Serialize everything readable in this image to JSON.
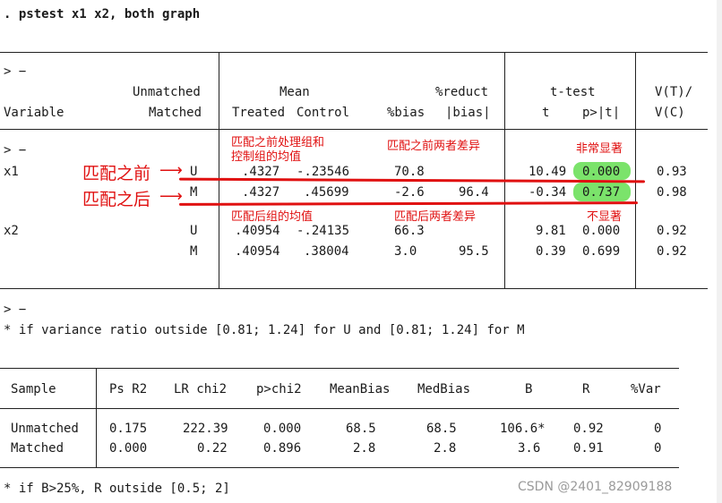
{
  "command": ". pstest x1 x2, both graph",
  "top_table": {
    "prompt1": "> −",
    "header": {
      "col_variable": "Variable",
      "row_unmatched": "Unmatched",
      "row_matched": "Matched",
      "mean_group": "Mean",
      "treated": "Treated",
      "control": "Control",
      "pct_bias": "%bias",
      "pct_reduct": "%reduct",
      "abs_bias": "|bias|",
      "ttest_group": "t-test",
      "t": "t",
      "p": "p>|t|",
      "vt": "V(T)/",
      "vc": "V(C)"
    },
    "prompt2": "> −",
    "rows": [
      {
        "var": "x1",
        "sample": "U",
        "treated": ".4327",
        "control": "-.23546",
        "bias": "70.8",
        "reduct": "",
        "t": "10.49",
        "p": "0.000",
        "v": "0.93"
      },
      {
        "var": "",
        "sample": "M",
        "treated": ".4327",
        "control": ".45699",
        "bias": "-2.6",
        "reduct": "96.4",
        "t": "-0.34",
        "p": "0.737",
        "v": "0.98"
      },
      {
        "var": "x2",
        "sample": "U",
        "treated": ".40954",
        "control": "-.24135",
        "bias": "66.3",
        "reduct": "",
        "t": "9.81",
        "p": "0.000",
        "v": "0.92"
      },
      {
        "var": "",
        "sample": "M",
        "treated": ".40954",
        "control": ".38004",
        "bias": "3.0",
        "reduct": "95.5",
        "t": "0.39",
        "p": "0.699",
        "v": "0.92"
      }
    ]
  },
  "note1_prompt": "> −",
  "note1": "* if variance ratio outside [0.81; 1.24] for U and [0.81; 1.24] for M",
  "bottom_table": {
    "headers": [
      "Sample",
      "Ps R2",
      "LR chi2",
      "p>chi2",
      "MeanBias",
      "MedBias",
      "B",
      "R",
      "%Var"
    ],
    "rows": [
      [
        "Unmatched",
        "0.175",
        "222.39",
        "0.000",
        "68.5",
        "68.5",
        "106.6*",
        "0.92",
        "0"
      ],
      [
        "Matched",
        "0.000",
        "0.22",
        "0.896",
        "2.8",
        "2.8",
        "3.6",
        "0.91",
        "0"
      ]
    ]
  },
  "note2": "* if B>25%, R outside [0.5; 2]",
  "annotations": {
    "before_match": "匹配之前",
    "after_match": "匹配之后",
    "mean_note_1": "匹配之前处理组和",
    "mean_note_2": "控制组的均值",
    "diff_before": "匹配之前两者差异",
    "very_significant": "非常显著",
    "mean_after": "匹配后组的均值",
    "diff_after": "匹配后两者差异",
    "not_significant": "不显著"
  },
  "watermark": "CSDN @2401_82909188",
  "colors": {
    "highlight": "#7be36b",
    "annotation": "#e01010"
  }
}
